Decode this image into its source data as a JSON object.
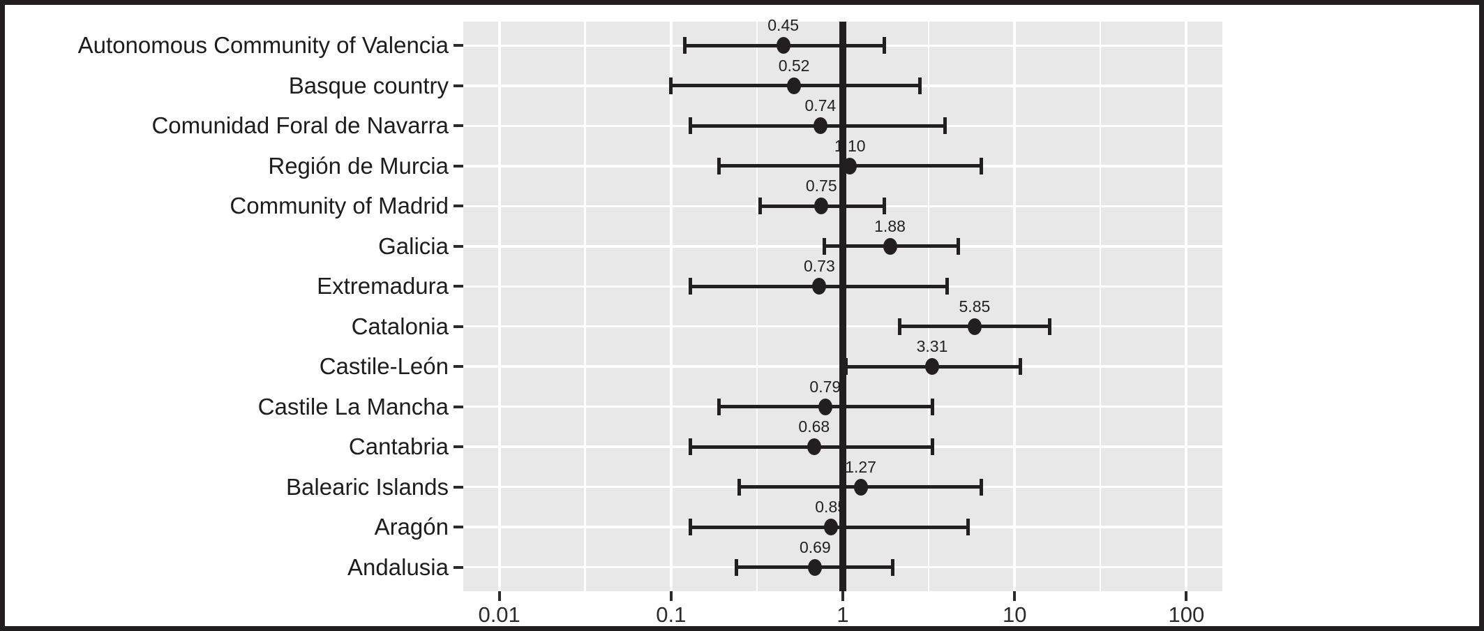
{
  "figure": {
    "title": "",
    "background_color": "#ffffff",
    "border_color": "#231f20",
    "panel_color": "#e8e8e8",
    "grid_color": "#ffffff",
    "ink_color": "#231f20",
    "axis_text_color": "#2b2b2b"
  },
  "chart_data": {
    "type": "scatter",
    "subtype": "forest-plot-with-error-bars",
    "orientation": "horizontal",
    "title": "",
    "xlabel": "",
    "ylabel": "",
    "grid": "on",
    "legend": "none",
    "x_axis": {
      "scale": "log10",
      "ticks": [
        0.01,
        0.1,
        1,
        10,
        100
      ],
      "tick_labels": [
        "0.01",
        "0.1",
        "1",
        "10",
        "100"
      ],
      "minor_gridlines": [
        0.0316,
        0.316,
        3.16,
        31.6
      ],
      "range": [
        0.00617,
        162
      ]
    },
    "reference_line_x": 1,
    "categories": [
      "Autonomous Community of Valencia",
      "Basque country",
      "Comunidad Foral de Navarra",
      "Región de Murcia",
      "Community of Madrid",
      "Galicia",
      "Extremadura",
      "Catalonia",
      "Castile-León",
      "Castile La Mancha",
      "Cantabria",
      "Balearic Islands",
      "Aragón",
      "Andalusia"
    ],
    "points": [
      {
        "category": "Autonomous Community of Valencia",
        "estimate": 0.45,
        "label": "0.45",
        "ci_low": 0.12,
        "ci_high": 1.74
      },
      {
        "category": "Basque country",
        "estimate": 0.52,
        "label": "0.52",
        "ci_low": 0.1,
        "ci_high": 2.8
      },
      {
        "category": "Comunidad Foral de Navarra",
        "estimate": 0.74,
        "label": "0.74",
        "ci_low": 0.13,
        "ci_high": 3.92
      },
      {
        "category": "Región de Murcia",
        "estimate": 1.1,
        "label": "1.10",
        "ci_low": 0.19,
        "ci_high": 6.4
      },
      {
        "category": "Community of Madrid",
        "estimate": 0.75,
        "label": "0.75",
        "ci_low": 0.33,
        "ci_high": 1.74
      },
      {
        "category": "Galicia",
        "estimate": 1.88,
        "label": "1.88",
        "ci_low": 0.78,
        "ci_high": 4.7
      },
      {
        "category": "Extremadura",
        "estimate": 0.73,
        "label": "0.73",
        "ci_low": 0.13,
        "ci_high": 4.03
      },
      {
        "category": "Catalonia",
        "estimate": 5.85,
        "label": "5.85",
        "ci_low": 2.15,
        "ci_high": 16.0
      },
      {
        "category": "Castile-León",
        "estimate": 3.31,
        "label": "3.31",
        "ci_low": 1.04,
        "ci_high": 10.8
      },
      {
        "category": "Castile La Mancha",
        "estimate": 0.79,
        "label": "0.79",
        "ci_low": 0.19,
        "ci_high": 3.34
      },
      {
        "category": "Cantabria",
        "estimate": 0.68,
        "label": "0.68",
        "ci_low": 0.13,
        "ci_high": 3.34
      },
      {
        "category": "Balearic Islands",
        "estimate": 1.27,
        "label": "1.27",
        "ci_low": 0.25,
        "ci_high": 6.4
      },
      {
        "category": "Aragón",
        "estimate": 0.85,
        "label": "0.85",
        "ci_low": 0.13,
        "ci_high": 5.34
      },
      {
        "category": "Andalusia",
        "estimate": 0.69,
        "label": "0.69",
        "ci_low": 0.24,
        "ci_high": 1.96
      }
    ]
  }
}
